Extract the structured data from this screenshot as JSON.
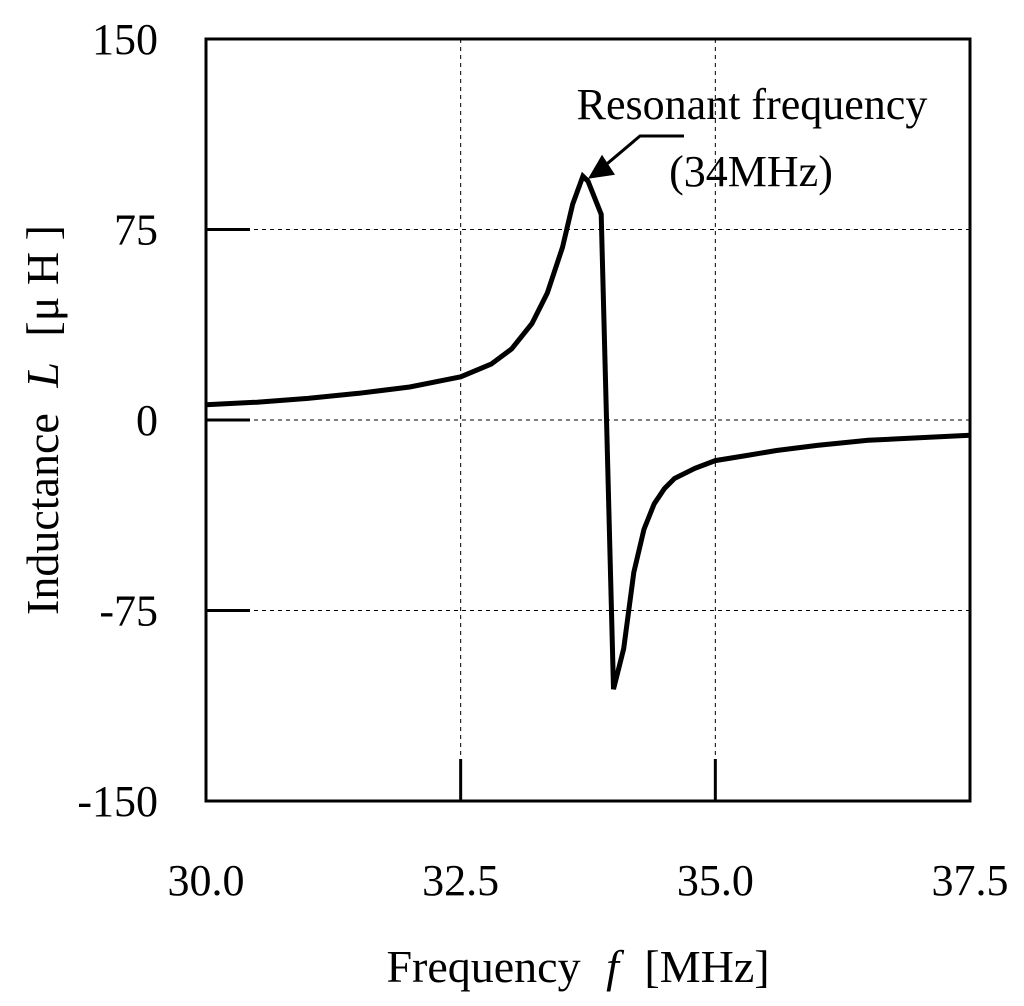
{
  "chart_data": {
    "type": "line",
    "title": "",
    "xlabel": "Frequency",
    "xlabel_symbol": "f",
    "xlabel_unit": "[MHz]",
    "ylabel": "Inductance",
    "ylabel_symbol": "L",
    "ylabel_unit": "[μ H ]",
    "xlim": [
      30.0,
      37.5
    ],
    "ylim": [
      -150,
      150
    ],
    "x_ticks": [
      "30.0",
      "32.5",
      "35.0",
      "37.5"
    ],
    "y_ticks": [
      "150",
      "75",
      "0",
      "-75",
      "-150"
    ],
    "grid": true,
    "legend": "none",
    "annotation": {
      "line1": "Resonant frequency",
      "line2": "(34MHz)",
      "target": [
        33.75,
        95
      ]
    },
    "series": [
      {
        "x": [
          30.0,
          30.5,
          31.0,
          31.5,
          32.0,
          32.5,
          32.8,
          33.0,
          33.2,
          33.35,
          33.5,
          33.6,
          33.7,
          33.75,
          33.88,
          34.0,
          34.1,
          34.2,
          34.3,
          34.4,
          34.5,
          34.6,
          34.8,
          35.0,
          35.3,
          35.6,
          36.0,
          36.5,
          37.0,
          37.5
        ],
        "y": [
          6,
          7,
          8.5,
          10.5,
          13,
          17,
          22,
          28,
          38,
          50,
          68,
          85,
          96,
          94,
          81,
          -106,
          -90,
          -60,
          -43,
          -33,
          -27,
          -23,
          -19,
          -16,
          -14,
          -12,
          -10,
          -8,
          -7,
          -6
        ]
      }
    ]
  }
}
